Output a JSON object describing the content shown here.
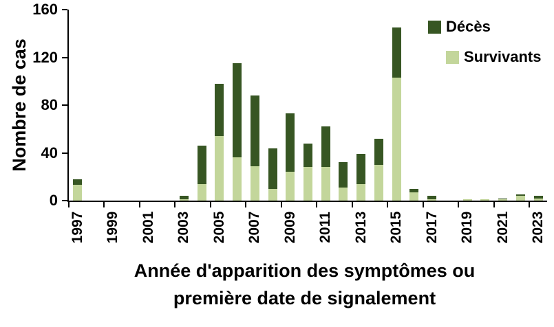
{
  "chart_data": {
    "type": "bar",
    "stacked": true,
    "ylabel": "Nombre de cas",
    "xlabel_line1": "Année d'apparition des symptômes ou",
    "xlabel_line2": "première date de signalement",
    "ylim": [
      0,
      160
    ],
    "y_ticks": [
      0,
      40,
      80,
      120,
      160
    ],
    "x_tick_interval": 2,
    "grid": false,
    "legend_position": "top-right",
    "categories": [
      1997,
      1998,
      1999,
      2000,
      2001,
      2002,
      2003,
      2004,
      2005,
      2006,
      2007,
      2008,
      2009,
      2010,
      2011,
      2012,
      2013,
      2014,
      2015,
      2016,
      2017,
      2018,
      2019,
      2020,
      2021,
      2022,
      2023
    ],
    "x_tick_labels": [
      "1997",
      "1999",
      "2001",
      "2003",
      "2005",
      "2007",
      "2009",
      "2011",
      "2013",
      "2015",
      "2017",
      "2019",
      "2021",
      "2023"
    ],
    "series": [
      {
        "name": "Décès",
        "color": "#375623",
        "values": [
          5,
          0,
          0,
          0,
          0,
          0,
          3,
          32,
          44,
          79,
          59,
          34,
          49,
          20,
          34,
          21,
          25,
          22,
          42,
          3,
          3,
          0,
          0,
          0,
          1,
          1,
          2
        ]
      },
      {
        "name": "Survivants",
        "color": "#c3d69b",
        "values": [
          13,
          0,
          0,
          0,
          0,
          0,
          1,
          14,
          54,
          36,
          29,
          10,
          24,
          28,
          28,
          11,
          14,
          30,
          103,
          7,
          1,
          0,
          1,
          1,
          1,
          4,
          2
        ]
      }
    ]
  },
  "colors": {
    "axis": "#000000",
    "background": "#ffffff",
    "text": "#000000"
  }
}
